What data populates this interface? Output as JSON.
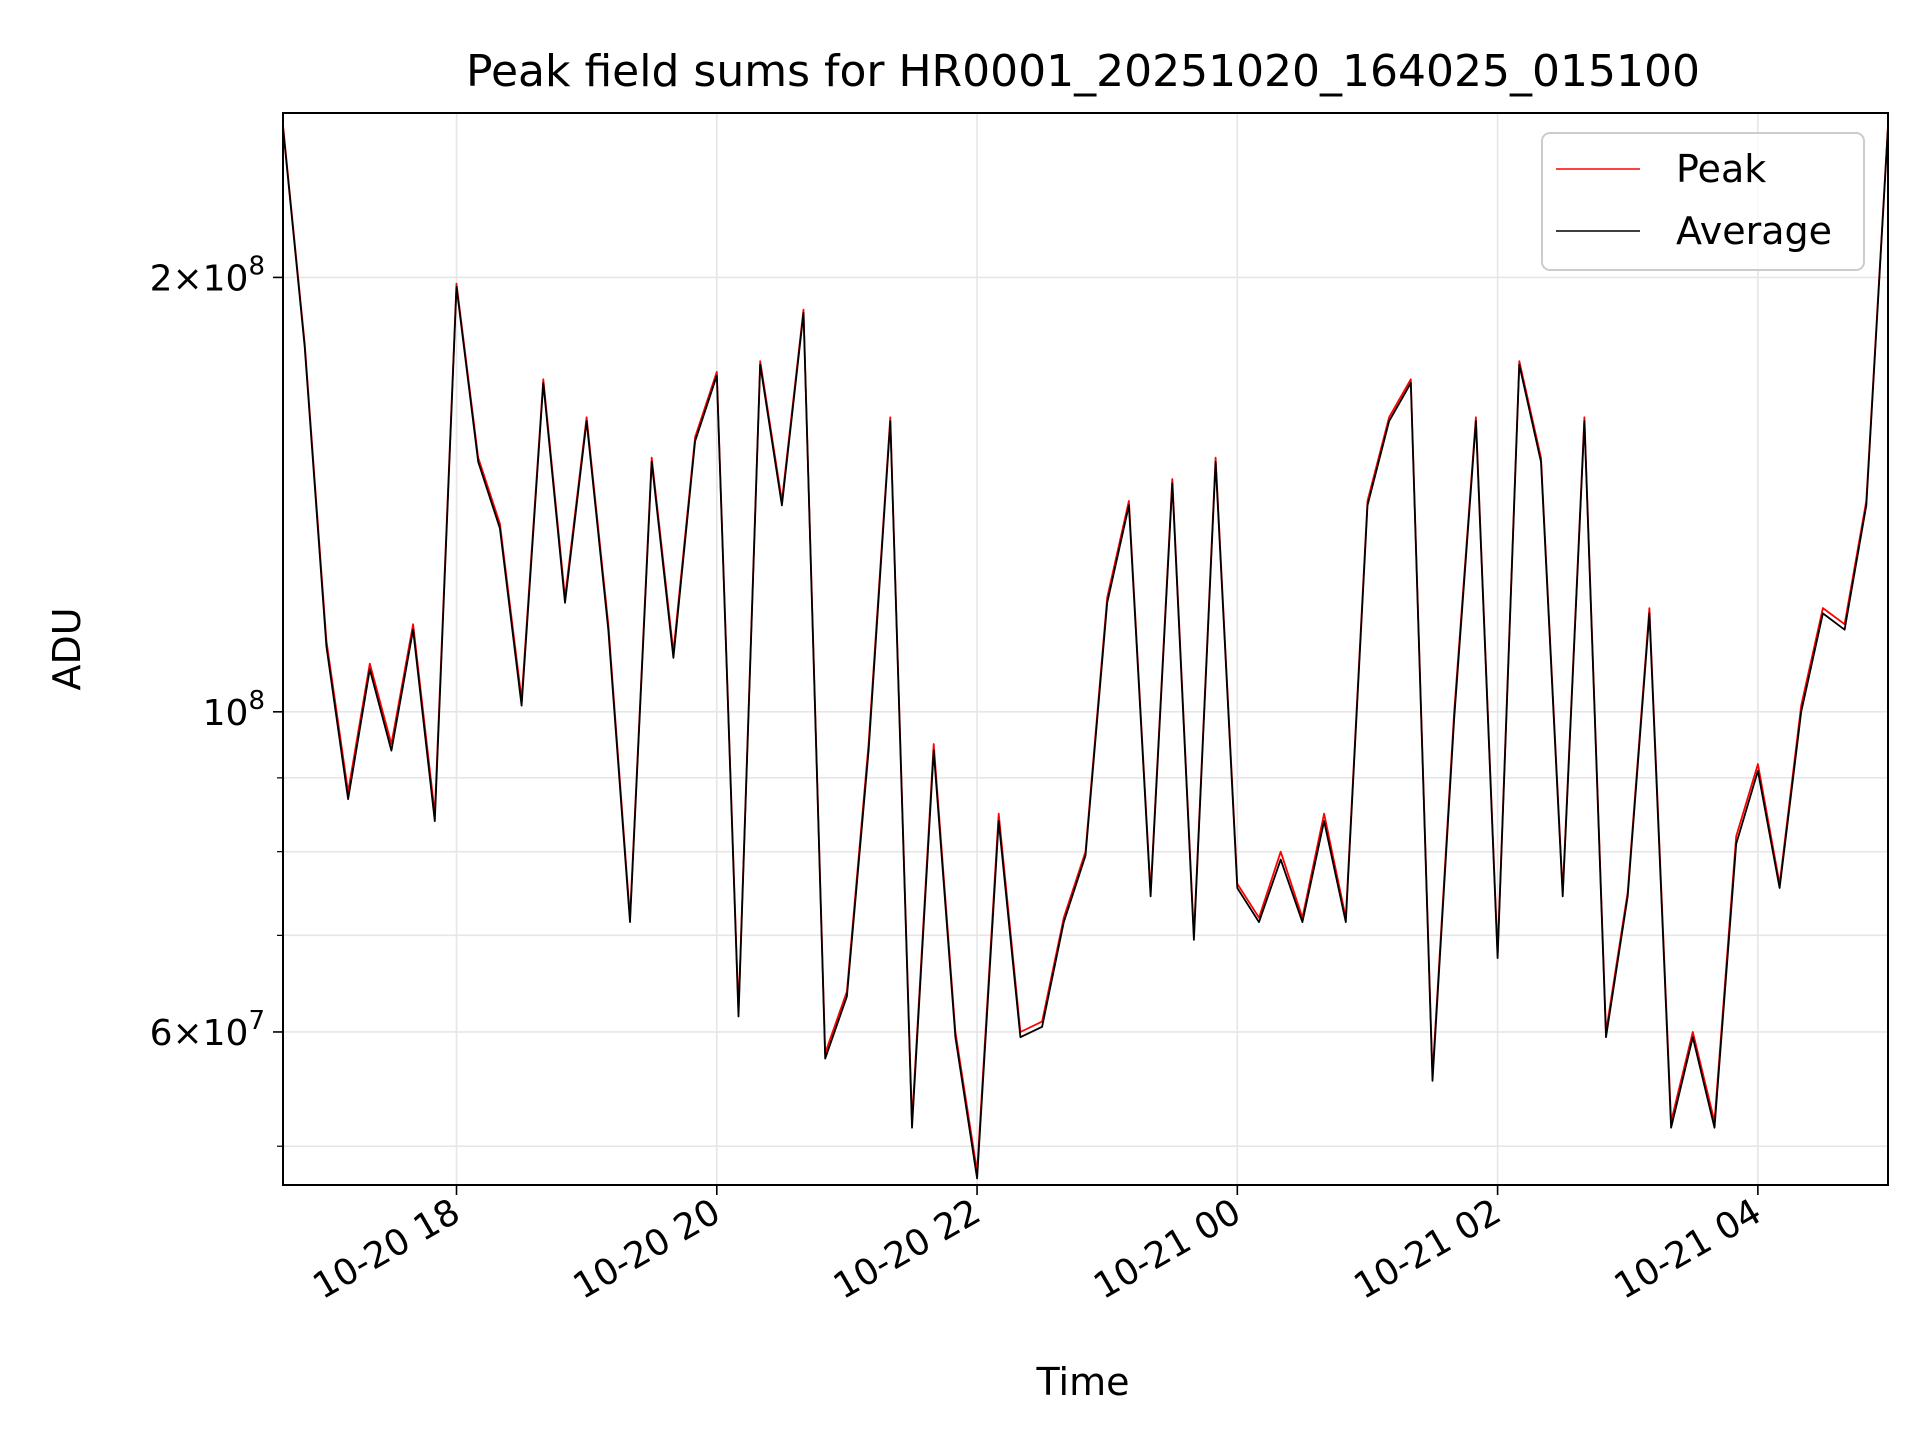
{
  "chart_data": {
    "type": "line",
    "title": "Peak field sums for HR0001_20251020_164025_015100",
    "xlabel": "Time",
    "ylabel": "ADU",
    "y_scale": "log",
    "ylim": [
      47000000,
      260000000
    ],
    "xlim": [
      "10-20 16:40",
      "10-21 05:00"
    ],
    "grid": true,
    "legend_position": "top-right",
    "x_ticks": [
      {
        "label": "10-20 18",
        "at": "10-20 18:00"
      },
      {
        "label": "10-20 20",
        "at": "10-20 20:00"
      },
      {
        "label": "10-20 22",
        "at": "10-20 22:00"
      },
      {
        "label": "10-21 00",
        "at": "10-21 00:00"
      },
      {
        "label": "10-21 02",
        "at": "10-21 02:00"
      },
      {
        "label": "10-21 04",
        "at": "10-21 04:00"
      }
    ],
    "y_major_ticks": [
      {
        "label_mantissa": "2",
        "label_exp": "8",
        "value": 200000000
      },
      {
        "label_mantissa": "",
        "label_exp": "8",
        "value": 100000000
      },
      {
        "label_mantissa": "6",
        "label_exp": "7",
        "value": 60000000
      }
    ],
    "y_minor_ticks": [
      50000000,
      70000000,
      80000000,
      90000000
    ],
    "series": [
      {
        "name": "Peak",
        "color": "#ff0000",
        "x": [
          "10-20 16:40",
          "10-20 16:50",
          "10-20 17:00",
          "10-20 17:10",
          "10-20 17:20",
          "10-20 17:30",
          "10-20 17:40",
          "10-20 17:50",
          "10-20 18:00",
          "10-20 18:10",
          "10-20 18:20",
          "10-20 18:30",
          "10-20 18:40",
          "10-20 18:50",
          "10-20 19:00",
          "10-20 19:10",
          "10-20 19:20",
          "10-20 19:30",
          "10-20 19:40",
          "10-20 19:50",
          "10-20 20:00",
          "10-20 20:10",
          "10-20 20:20",
          "10-20 20:30",
          "10-20 20:40",
          "10-20 20:50",
          "10-20 21:00",
          "10-20 21:10",
          "10-20 21:20",
          "10-20 21:30",
          "10-20 21:40",
          "10-20 21:50",
          "10-20 22:00",
          "10-20 22:10",
          "10-20 22:20",
          "10-20 22:30",
          "10-20 22:40",
          "10-20 22:50",
          "10-20 23:00",
          "10-20 23:10",
          "10-20 23:20",
          "10-20 23:30",
          "10-20 23:40",
          "10-20 23:50",
          "10-21 00:00",
          "10-21 00:10",
          "10-21 00:20",
          "10-21 00:30",
          "10-21 00:40",
          "10-21 00:50",
          "10-21 01:00",
          "10-21 01:10",
          "10-21 01:20",
          "10-21 01:30",
          "10-21 01:40",
          "10-21 01:50",
          "10-21 02:00",
          "10-21 02:10",
          "10-21 02:20",
          "10-21 02:30",
          "10-21 02:40",
          "10-21 02:50",
          "10-21 03:00",
          "10-21 03:10",
          "10-21 03:20",
          "10-21 03:30",
          "10-21 03:40",
          "10-21 03:50",
          "10-21 04:00",
          "10-21 04:10",
          "10-21 04:20",
          "10-21 04:30",
          "10-21 04:40",
          "10-21 04:50",
          "10-21 05:00"
        ],
        "y": [
          255000000,
          180000000,
          112000000,
          88000000,
          108000000,
          95000000,
          115000000,
          85000000,
          198000000,
          150000000,
          135000000,
          102000000,
          170000000,
          120000000,
          160000000,
          115000000,
          72000000,
          150000000,
          110000000,
          155000000,
          172000000,
          62000000,
          175000000,
          140000000,
          190000000,
          58000000,
          64000000,
          95000000,
          160000000,
          52000000,
          95000000,
          60000000,
          48000000,
          85000000,
          60000000,
          61000000,
          72000000,
          80000000,
          120000000,
          140000000,
          75000000,
          145000000,
          70000000,
          150000000,
          76000000,
          72000000,
          80000000,
          72000000,
          85000000,
          72000000,
          140000000,
          160000000,
          170000000,
          56000000,
          100000000,
          160000000,
          68000000,
          175000000,
          150000000,
          75000000,
          160000000,
          60000000,
          75000000,
          118000000,
          52000000,
          60000000,
          52000000,
          82000000,
          92000000,
          76000000,
          101000000,
          118000000,
          115000000,
          140000000,
          255000000
        ]
      },
      {
        "name": "Average",
        "color": "#000000",
        "x": [
          "10-20 16:40",
          "10-20 16:50",
          "10-20 17:00",
          "10-20 17:10",
          "10-20 17:20",
          "10-20 17:30",
          "10-20 17:40",
          "10-20 17:50",
          "10-20 18:00",
          "10-20 18:10",
          "10-20 18:20",
          "10-20 18:30",
          "10-20 18:40",
          "10-20 18:50",
          "10-20 19:00",
          "10-20 19:10",
          "10-20 19:20",
          "10-20 19:30",
          "10-20 19:40",
          "10-20 19:50",
          "10-20 20:00",
          "10-20 20:10",
          "10-20 20:20",
          "10-20 20:30",
          "10-20 20:40",
          "10-20 20:50",
          "10-20 21:00",
          "10-20 21:10",
          "10-20 21:20",
          "10-20 21:30",
          "10-20 21:40",
          "10-20 21:50",
          "10-20 22:00",
          "10-20 22:10",
          "10-20 22:20",
          "10-20 22:30",
          "10-20 22:40",
          "10-20 22:50",
          "10-20 23:00",
          "10-20 23:10",
          "10-20 23:20",
          "10-20 23:30",
          "10-20 23:40",
          "10-20 23:50",
          "10-21 00:00",
          "10-21 00:10",
          "10-21 00:20",
          "10-21 00:30",
          "10-21 00:40",
          "10-21 00:50",
          "10-21 01:00",
          "10-21 01:10",
          "10-21 01:20",
          "10-21 01:30",
          "10-21 01:40",
          "10-21 01:50",
          "10-21 02:00",
          "10-21 02:10",
          "10-21 02:20",
          "10-21 02:30",
          "10-21 02:40",
          "10-21 02:50",
          "10-21 03:00",
          "10-21 03:10",
          "10-21 03:20",
          "10-21 03:30",
          "10-21 03:40",
          "10-21 03:50",
          "10-21 04:00",
          "10-21 04:10",
          "10-21 04:20",
          "10-21 04:30",
          "10-21 04:40",
          "10-21 04:50",
          "10-21 05:00"
        ],
        "y": [
          254000000,
          179000000,
          111000000,
          87000000,
          107000000,
          94000000,
          114000000,
          84000000,
          197000000,
          149000000,
          134000000,
          101000000,
          169000000,
          119000000,
          159000000,
          114000000,
          71500000,
          149000000,
          109000000,
          154000000,
          171000000,
          61500000,
          174000000,
          139000000,
          189000000,
          57500000,
          63500000,
          94000000,
          159000000,
          51500000,
          94000000,
          59500000,
          47500000,
          84000000,
          59500000,
          60500000,
          71500000,
          79500000,
          119000000,
          139000000,
          74500000,
          144000000,
          69500000,
          149000000,
          75500000,
          71500000,
          79000000,
          71500000,
          84000000,
          71500000,
          139000000,
          159000000,
          169000000,
          55500000,
          99000000,
          159000000,
          67500000,
          174000000,
          149000000,
          74500000,
          159000000,
          59500000,
          74500000,
          117000000,
          51500000,
          59500000,
          51500000,
          81000000,
          91000000,
          75500000,
          100000000,
          117000000,
          114000000,
          139000000,
          254000000
        ]
      }
    ]
  }
}
